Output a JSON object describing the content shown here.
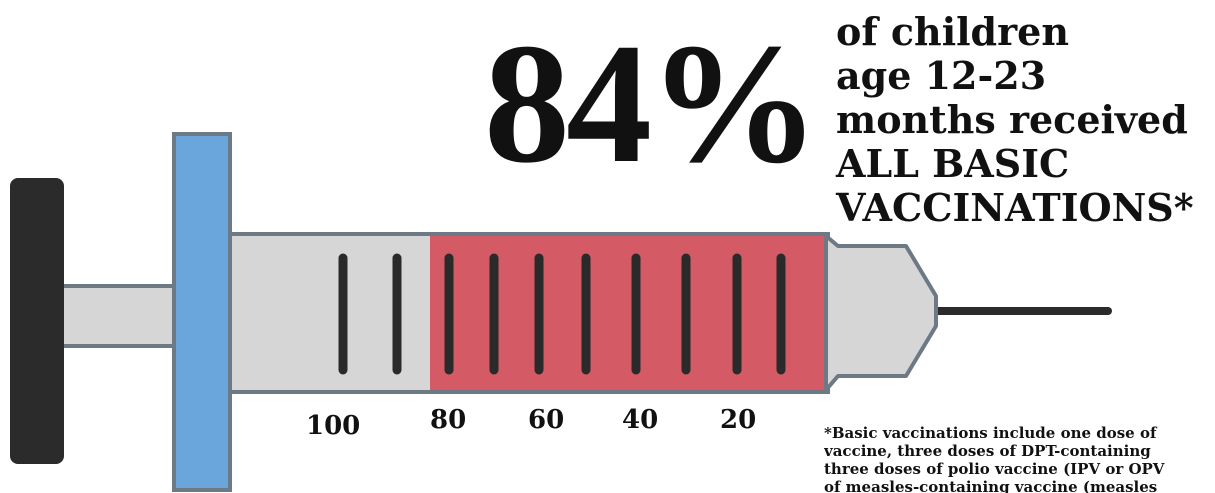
{
  "headline": {
    "value": "84%",
    "line1": "of children",
    "line2": "age 12-23",
    "line3": "months received",
    "line4": "ALL BASIC",
    "line5": "VACCINATIONS*"
  },
  "syringe": {
    "scale_labels": [
      "100",
      "80",
      "60",
      "40",
      "20"
    ],
    "fill_fraction": 0.84,
    "colors": {
      "fill": "#d45a66",
      "barrel": "#d6d6d6",
      "outline": "#6d7a86",
      "flange": "#6aa6dc",
      "plunger_cap": "#2b2b2b",
      "tick": "#2a2a2a"
    }
  },
  "footnote": {
    "line1": "*Basic vaccinations include one dose of",
    "line2": "vaccine, three doses of DPT-containing",
    "line3": "three doses of polio vaccine (IPV or OPV",
    "line4": "of measles-containing vaccine (measles"
  }
}
